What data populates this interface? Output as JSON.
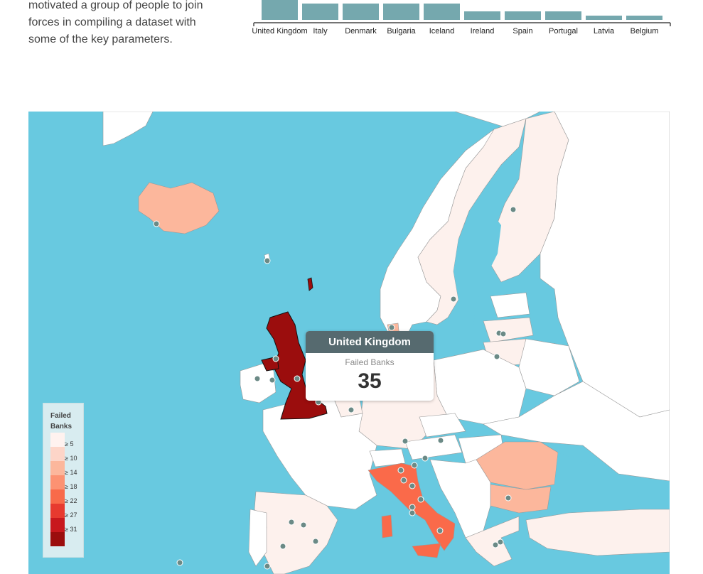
{
  "intro": {
    "lines": [
      "motivated a group of people to join",
      "forces in compiling a dataset with",
      "some of the key parameters."
    ]
  },
  "chart_data": {
    "type": "bar",
    "categories": [
      "United Kingdom",
      "Italy",
      "Denmark",
      "Bulgaria",
      "Iceland",
      "Ireland",
      "Spain",
      "Portugal",
      "Latvia",
      "Belgium"
    ],
    "values": [
      35,
      29,
      29,
      29,
      29,
      15,
      15,
      15,
      8,
      8
    ],
    "ylim": [
      0,
      35
    ]
  },
  "map": {
    "tooltip": {
      "title": "United Kingdom",
      "metric": "Failed Banks",
      "value": "35"
    },
    "legend": {
      "title": "Failed Banks",
      "bins": [
        {
          "label": "≥ 5",
          "color": "#fff2ef"
        },
        {
          "label": "≥ 10",
          "color": "#fdd5c8"
        },
        {
          "label": "≥ 14",
          "color": "#fcb79c"
        },
        {
          "label": "≥ 18",
          "color": "#fc9272"
        },
        {
          "label": "≥ 22",
          "color": "#f86a4a"
        },
        {
          "label": "≥ 27",
          "color": "#e73a2f"
        },
        {
          "label": "≥ 31",
          "color": "#c8181d"
        },
        {
          "label": "",
          "color": "#9b0d0d"
        }
      ]
    },
    "colors": {
      "water": "#68c9e0",
      "uk": "#9b0d0d",
      "italy": "#fa6a4a",
      "iceland": "#fcb79c",
      "romania": "#fcb79c",
      "bulgaria": "#fcb79c",
      "light": "#fdf1ed",
      "white": "#ffffff",
      "border": "#999999",
      "marker": "#6b8a86"
    }
  }
}
